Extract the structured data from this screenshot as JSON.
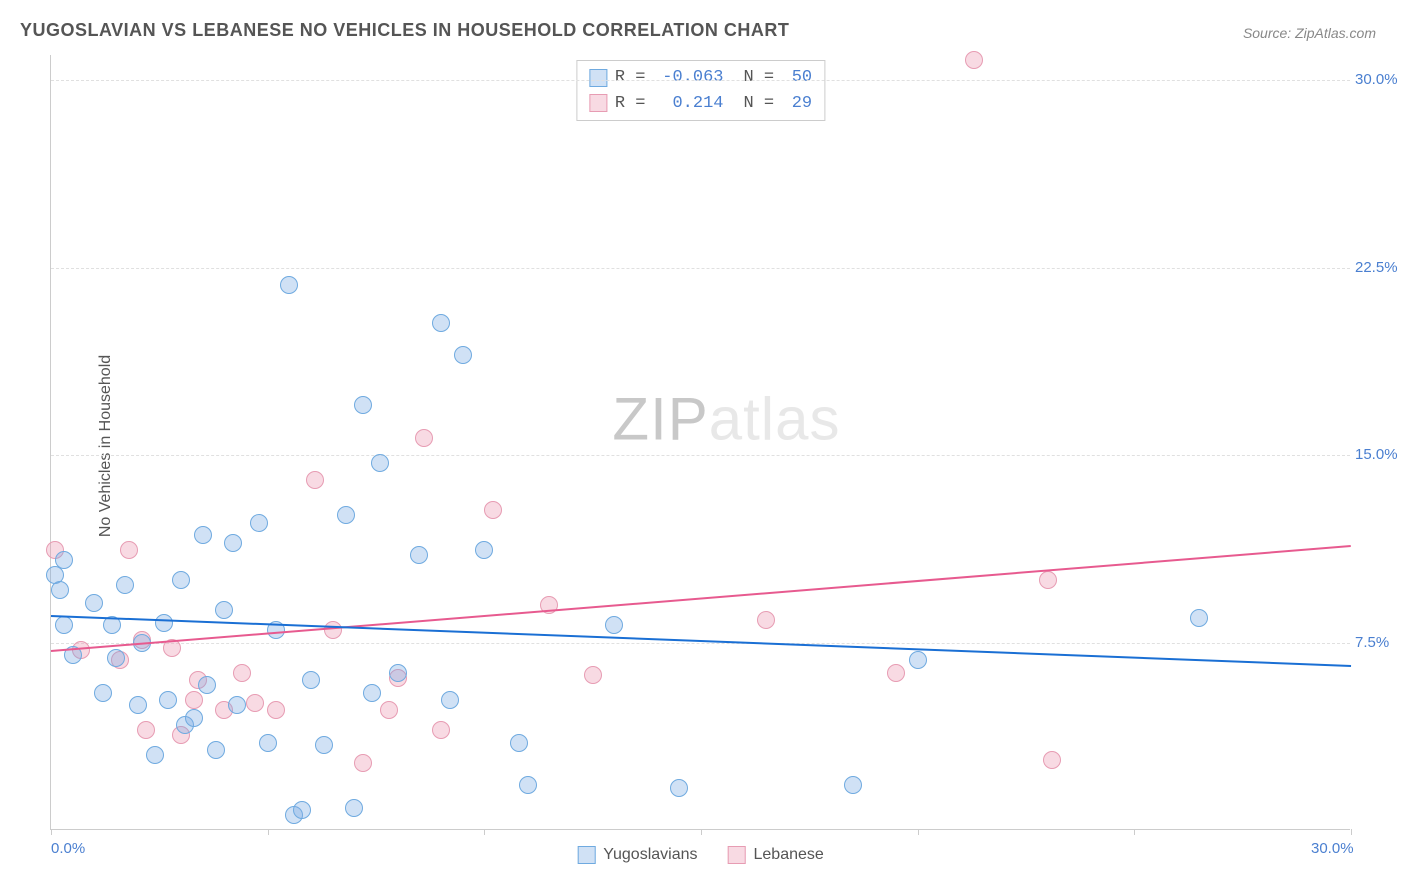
{
  "title": "YUGOSLAVIAN VS LEBANESE NO VEHICLES IN HOUSEHOLD CORRELATION CHART",
  "source": "Source: ZipAtlas.com",
  "y_axis_label": "No Vehicles in Household",
  "watermark": {
    "prefix": "ZIP",
    "suffix": "atlas"
  },
  "colors": {
    "series_a_fill": "rgba(120,170,225,0.35)",
    "series_a_stroke": "#6faae0",
    "series_a_line": "#1a6fd4",
    "series_b_fill": "rgba(235,150,175,0.35)",
    "series_b_stroke": "#e79cb3",
    "series_b_line": "#e75a8f",
    "tick_text": "#4a7fd0",
    "grid": "#e0e0e0",
    "background": "#ffffff"
  },
  "chart": {
    "type": "scatter",
    "xlim": [
      0,
      30
    ],
    "ylim": [
      0,
      31
    ],
    "y_ticks": [
      7.5,
      15.0,
      22.5,
      30.0
    ],
    "y_tick_labels": [
      "7.5%",
      "15.0%",
      "22.5%",
      "30.0%"
    ],
    "x_ticks": [
      0,
      5,
      10,
      15,
      20,
      25,
      30
    ],
    "x_tick_labels_shown": {
      "0": "0.0%",
      "30": "30.0%"
    },
    "point_radius": 9
  },
  "series_a": {
    "name": "Yugoslavians",
    "R": "-0.063",
    "N": "50",
    "trend": {
      "x1": 0,
      "y1": 8.6,
      "x2": 30,
      "y2": 6.6
    },
    "points": [
      [
        0.1,
        10.2
      ],
      [
        0.2,
        9.6
      ],
      [
        0.3,
        10.8
      ],
      [
        0.3,
        8.2
      ],
      [
        0.5,
        7.0
      ],
      [
        1.0,
        9.1
      ],
      [
        1.2,
        5.5
      ],
      [
        1.4,
        8.2
      ],
      [
        1.5,
        6.9
      ],
      [
        1.7,
        9.8
      ],
      [
        2.0,
        5.0
      ],
      [
        2.1,
        7.5
      ],
      [
        2.4,
        3.0
      ],
      [
        2.6,
        8.3
      ],
      [
        2.7,
        5.2
      ],
      [
        3.0,
        10.0
      ],
      [
        3.1,
        4.2
      ],
      [
        3.5,
        11.8
      ],
      [
        3.6,
        5.8
      ],
      [
        3.8,
        3.2
      ],
      [
        4.0,
        8.8
      ],
      [
        4.2,
        11.5
      ],
      [
        4.3,
        5.0
      ],
      [
        4.8,
        12.3
      ],
      [
        5.0,
        3.5
      ],
      [
        5.2,
        8.0
      ],
      [
        5.5,
        21.8
      ],
      [
        5.6,
        0.6
      ],
      [
        5.8,
        0.8
      ],
      [
        6.0,
        6.0
      ],
      [
        6.3,
        3.4
      ],
      [
        6.8,
        12.6
      ],
      [
        7.0,
        0.9
      ],
      [
        7.2,
        17.0
      ],
      [
        7.4,
        5.5
      ],
      [
        7.6,
        14.7
      ],
      [
        8.0,
        6.3
      ],
      [
        8.5,
        11.0
      ],
      [
        9.0,
        20.3
      ],
      [
        9.2,
        5.2
      ],
      [
        9.5,
        19.0
      ],
      [
        10.0,
        11.2
      ],
      [
        10.8,
        3.5
      ],
      [
        11.0,
        1.8
      ],
      [
        13.0,
        8.2
      ],
      [
        14.5,
        1.7
      ],
      [
        18.5,
        1.8
      ],
      [
        20.0,
        6.8
      ],
      [
        26.5,
        8.5
      ],
      [
        3.3,
        4.5
      ]
    ]
  },
  "series_b": {
    "name": "Lebanese",
    "R": "0.214",
    "N": "29",
    "trend": {
      "x1": 0,
      "y1": 7.2,
      "x2": 30,
      "y2": 11.4
    },
    "points": [
      [
        0.1,
        11.2
      ],
      [
        0.7,
        7.2
      ],
      [
        1.6,
        6.8
      ],
      [
        1.8,
        11.2
      ],
      [
        2.1,
        7.6
      ],
      [
        2.2,
        4.0
      ],
      [
        2.8,
        7.3
      ],
      [
        3.0,
        3.8
      ],
      [
        3.3,
        5.2
      ],
      [
        3.4,
        6.0
      ],
      [
        4.0,
        4.8
      ],
      [
        4.4,
        6.3
      ],
      [
        4.7,
        5.1
      ],
      [
        5.2,
        4.8
      ],
      [
        6.1,
        14.0
      ],
      [
        6.5,
        8.0
      ],
      [
        7.2,
        2.7
      ],
      [
        7.8,
        4.8
      ],
      [
        8.0,
        6.1
      ],
      [
        8.6,
        15.7
      ],
      [
        9.0,
        4.0
      ],
      [
        10.2,
        12.8
      ],
      [
        11.5,
        9.0
      ],
      [
        12.5,
        6.2
      ],
      [
        16.5,
        8.4
      ],
      [
        19.5,
        6.3
      ],
      [
        21.3,
        30.8
      ],
      [
        23.0,
        10.0
      ],
      [
        23.1,
        2.8
      ]
    ]
  },
  "legend_bottom": [
    "Yugoslavians",
    "Lebanese"
  ],
  "legend_top_text": {
    "R_label": "R =",
    "N_label": "N ="
  }
}
